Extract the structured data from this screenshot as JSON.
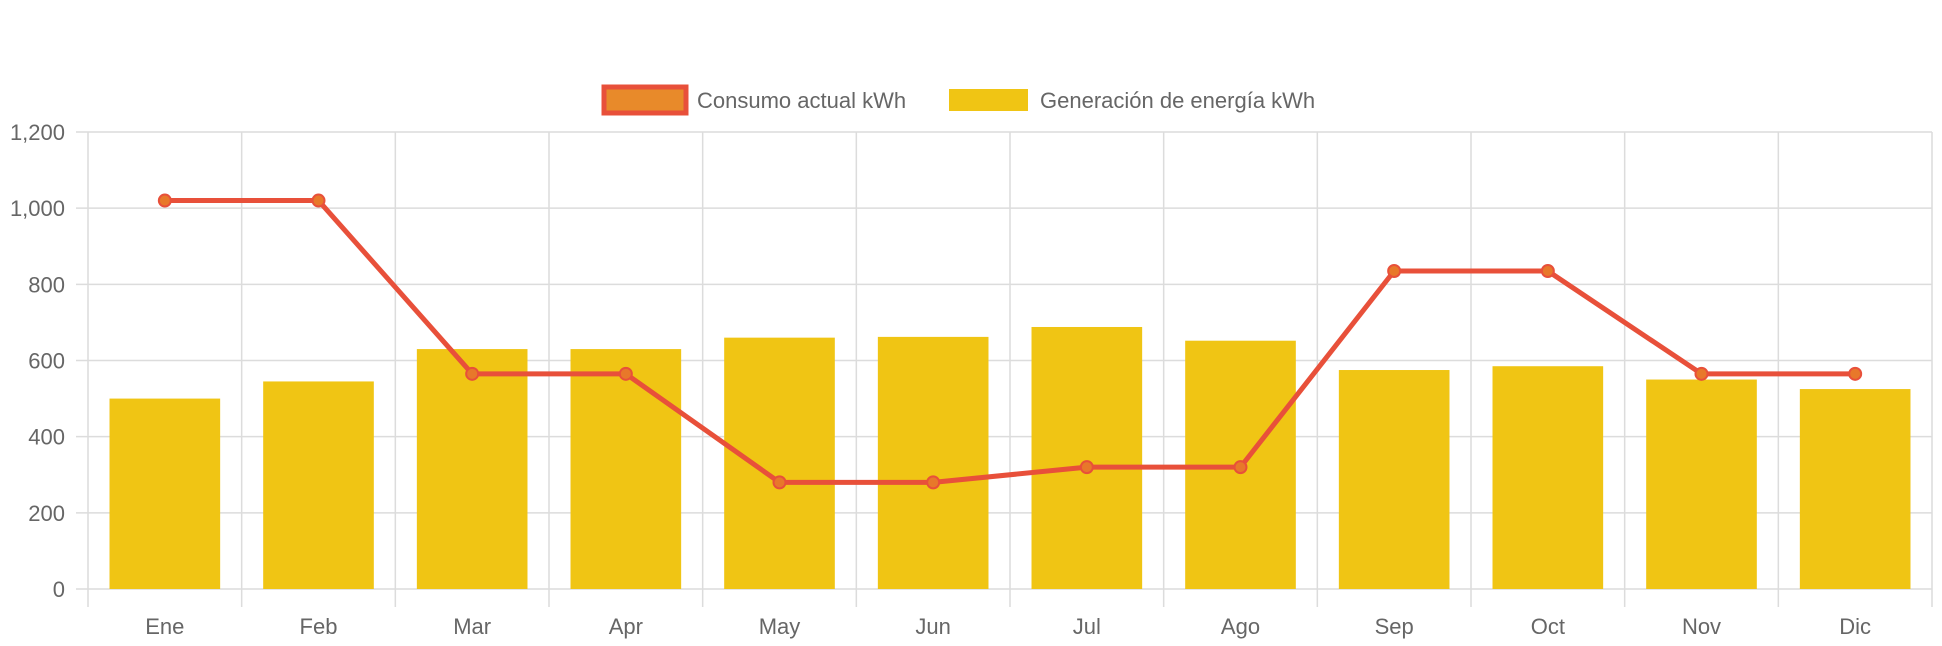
{
  "chart_data": {
    "type": "bar",
    "categories": [
      "Ene",
      "Feb",
      "Mar",
      "Apr",
      "May",
      "Jun",
      "Jul",
      "Ago",
      "Sep",
      "Oct",
      "Nov",
      "Dic"
    ],
    "series": [
      {
        "name": "Consumo actual kWh",
        "type": "line",
        "values": [
          1020,
          1020,
          565,
          565,
          280,
          280,
          320,
          320,
          835,
          835,
          565,
          565
        ]
      },
      {
        "name": "Generación de energía kWh",
        "type": "bar",
        "values": [
          500,
          545,
          630,
          630,
          660,
          662,
          688,
          652,
          575,
          585,
          550,
          525
        ]
      }
    ],
    "yticks": [
      "0",
      "200",
      "400",
      "600",
      "800",
      "1,000",
      "1,200"
    ],
    "ylim": [
      0,
      1200
    ],
    "grid": true,
    "legend": "top-center",
    "colors": {
      "line": "#e8503a",
      "line_point": "#e8782a",
      "line_legend_fill": "#e88a2a",
      "bar": "#f0c514",
      "grid": "#dcdcdc",
      "text": "#666666"
    }
  }
}
